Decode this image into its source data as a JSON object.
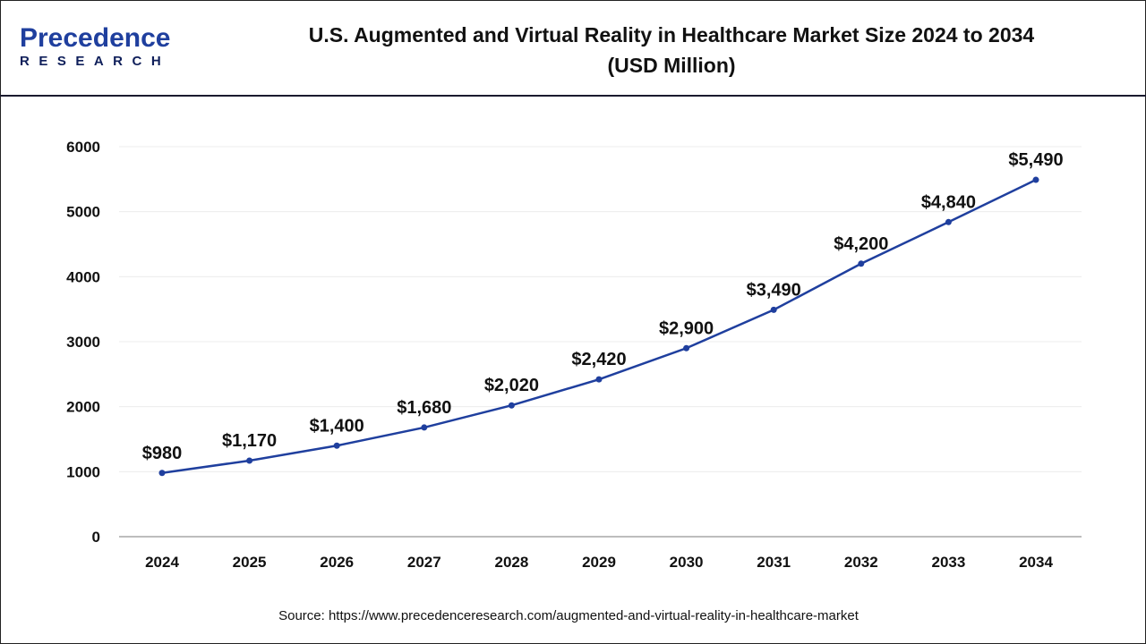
{
  "logo": {
    "text_top": "Precedence",
    "text_bottom": "RESEARCH"
  },
  "header": {
    "title_line1": "U.S. Augmented and Virtual Reality in Healthcare Market Size 2024 to 2034",
    "title_line2": "(USD Million)"
  },
  "source": "Source: https://www.precedenceresearch.com/augmented-and-virtual-reality-in-healthcare-market",
  "chart_data": {
    "type": "line",
    "title": "U.S. Augmented and Virtual Reality in Healthcare Market Size 2024 to 2034 (USD Million)",
    "categories": [
      "2024",
      "2025",
      "2026",
      "2027",
      "2028",
      "2029",
      "2030",
      "2031",
      "2032",
      "2033",
      "2034"
    ],
    "values": [
      980,
      1170,
      1400,
      1680,
      2020,
      2420,
      2900,
      3490,
      4200,
      4840,
      5490
    ],
    "data_labels": [
      "$980",
      "$1,170",
      "$1,400",
      "$1,680",
      "$2,020",
      "$2,420",
      "$2,900",
      "$3,490",
      "$4,200",
      "$4,840",
      "$5,490"
    ],
    "yticks": [
      0,
      1000,
      2000,
      3000,
      4000,
      5000,
      6000
    ],
    "ylim": [
      0,
      6000
    ],
    "grid": true,
    "line_color": "#1f3f9e",
    "xlabel": "",
    "ylabel": ""
  }
}
